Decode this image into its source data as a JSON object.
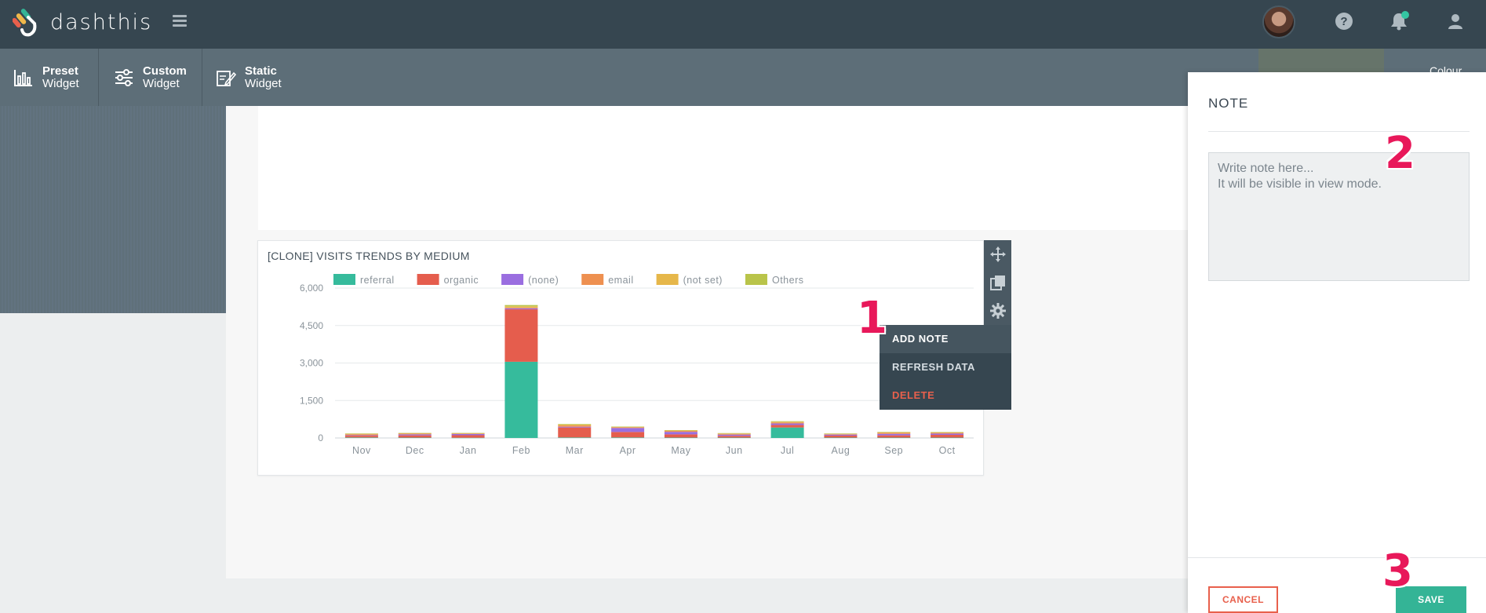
{
  "app": {
    "name": "dashthis"
  },
  "topbar": {
    "icons": {
      "menu": "hamburger-icon",
      "help": "help-icon",
      "notifications": "bell-icon",
      "user": "user-icon"
    },
    "notification_dot_color": "#34c5a2"
  },
  "subbar": {
    "items": [
      {
        "title": "Preset",
        "subtitle": "Widget",
        "icon": "bar-chart-icon"
      },
      {
        "title": "Custom",
        "subtitle": "Widget",
        "icon": "sliders-icon"
      },
      {
        "title": "Static",
        "subtitle": "Widget",
        "icon": "edit-icon"
      }
    ],
    "partial_label": "Colour"
  },
  "widget": {
    "title": "[CLONE] VISITS TRENDS BY MEDIUM",
    "tools": [
      "move-icon",
      "copy-icon",
      "gear-icon"
    ]
  },
  "context_menu": {
    "items": [
      {
        "label": "ADD NOTE",
        "state": "active"
      },
      {
        "label": "REFRESH DATA",
        "state": "normal"
      },
      {
        "label": "DELETE",
        "state": "danger"
      }
    ]
  },
  "markers": [
    "1",
    "2",
    "3"
  ],
  "note_panel": {
    "title": "NOTE",
    "placeholder": "Write note here...\nIt will be visible in view mode.",
    "cancel_label": "CANCEL",
    "save_label": "SAVE"
  },
  "colors": {
    "accent": "#34b496",
    "danger": "#e8604c",
    "topbar": "#364650",
    "marker": "#e8185a"
  },
  "chart_data": {
    "type": "bar",
    "stacked": true,
    "categories": [
      "Nov",
      "Dec",
      "Jan",
      "Feb",
      "Mar",
      "Apr",
      "May",
      "Jun",
      "Jul",
      "Aug",
      "Sep",
      "Oct"
    ],
    "ylim": [
      0,
      6000
    ],
    "yticks": [
      "0",
      "1,500",
      "3,000",
      "4,500",
      "6,000"
    ],
    "legend_position": "top",
    "grid": true,
    "series": [
      {
        "name": "referral",
        "color": "#36bb9c",
        "values": [
          20,
          15,
          10,
          3050,
          20,
          20,
          15,
          15,
          420,
          15,
          15,
          15
        ]
      },
      {
        "name": "organic",
        "color": "#e55d4d",
        "values": [
          70,
          90,
          100,
          2100,
          400,
          220,
          130,
          70,
          100,
          80,
          90,
          110
        ]
      },
      {
        "name": "(none)",
        "color": "#9a6ee0",
        "values": [
          20,
          40,
          50,
          40,
          30,
          160,
          100,
          50,
          60,
          40,
          60,
          50
        ]
      },
      {
        "name": "email",
        "color": "#ee9050",
        "values": [
          40,
          30,
          20,
          30,
          50,
          30,
          40,
          30,
          40,
          20,
          40,
          30
        ]
      },
      {
        "name": "(not set)",
        "color": "#e6b74a",
        "values": [
          20,
          15,
          10,
          50,
          40,
          15,
          20,
          20,
          30,
          15,
          25,
          20
        ]
      },
      {
        "name": "Others",
        "color": "#b9c44a",
        "values": [
          10,
          10,
          10,
          50,
          20,
          10,
          10,
          10,
          20,
          10,
          10,
          10
        ]
      }
    ]
  }
}
